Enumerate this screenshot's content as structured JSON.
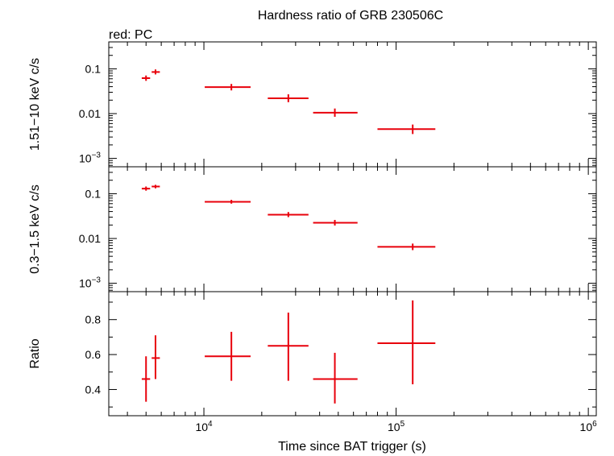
{
  "chart_data": {
    "type": "scatter",
    "title": "Hardness ratio of GRB 230506C",
    "subtitle": "red: PC",
    "xlabel": "Time since BAT trigger (s)",
    "x_scale": "log",
    "xlim": [
      3200,
      1100000
    ],
    "x_ticks": [
      {
        "value": 10000,
        "base": "10",
        "exp": "4"
      },
      {
        "value": 100000,
        "base": "10",
        "exp": "5"
      },
      {
        "value": 1000000,
        "base": "10",
        "exp": "6"
      }
    ],
    "color": "#e8000b",
    "panels": [
      {
        "id": "hard",
        "ylabel": "1.51−10 keV c/s",
        "y_scale": "log",
        "ylim": [
          0.00065,
          0.4
        ],
        "y_ticks": [
          {
            "value": 0.1,
            "label": "0.1"
          },
          {
            "value": 0.01,
            "label": "0.01"
          },
          {
            "value": 0.001,
            "base": "10",
            "exp": "−3"
          }
        ],
        "points": [
          {
            "x": 5000,
            "xlo": 4750,
            "xhi": 5250,
            "y": 0.062,
            "ylo": 0.054,
            "yhi": 0.071
          },
          {
            "x": 5600,
            "xlo": 5350,
            "xhi": 5900,
            "y": 0.085,
            "ylo": 0.075,
            "yhi": 0.097
          },
          {
            "x": 13900,
            "xlo": 10100,
            "xhi": 17500,
            "y": 0.039,
            "ylo": 0.033,
            "yhi": 0.046
          },
          {
            "x": 27500,
            "xlo": 21500,
            "xhi": 35000,
            "y": 0.022,
            "ylo": 0.018,
            "yhi": 0.027
          },
          {
            "x": 48000,
            "xlo": 37000,
            "xhi": 63000,
            "y": 0.0105,
            "ylo": 0.0085,
            "yhi": 0.013
          },
          {
            "x": 122000,
            "xlo": 80000,
            "xhi": 160000,
            "y": 0.0045,
            "ylo": 0.0035,
            "yhi": 0.0057
          }
        ]
      },
      {
        "id": "soft",
        "ylabel": "0.3−1.5 keV c/s",
        "y_scale": "log",
        "ylim": [
          0.00065,
          0.4
        ],
        "y_ticks": [
          {
            "value": 0.1,
            "label": "0.1"
          },
          {
            "value": 0.01,
            "label": "0.01"
          },
          {
            "value": 0.001,
            "base": "10",
            "exp": "−3"
          }
        ],
        "points": [
          {
            "x": 5000,
            "xlo": 4750,
            "xhi": 5250,
            "y": 0.13,
            "ylo": 0.117,
            "yhi": 0.145
          },
          {
            "x": 5600,
            "xlo": 5350,
            "xhi": 5900,
            "y": 0.145,
            "ylo": 0.132,
            "yhi": 0.158
          },
          {
            "x": 13900,
            "xlo": 10100,
            "xhi": 17500,
            "y": 0.066,
            "ylo": 0.06,
            "yhi": 0.073
          },
          {
            "x": 27500,
            "xlo": 21500,
            "xhi": 35000,
            "y": 0.034,
            "ylo": 0.03,
            "yhi": 0.039
          },
          {
            "x": 48000,
            "xlo": 37000,
            "xhi": 63000,
            "y": 0.0225,
            "ylo": 0.0195,
            "yhi": 0.026
          },
          {
            "x": 122000,
            "xlo": 80000,
            "xhi": 160000,
            "y": 0.0065,
            "ylo": 0.0055,
            "yhi": 0.0077
          }
        ]
      },
      {
        "id": "ratio",
        "ylabel": "Ratio",
        "y_scale": "linear",
        "ylim": [
          0.25,
          0.96
        ],
        "y_ticks": [
          {
            "value": 0.4,
            "label": "0.4"
          },
          {
            "value": 0.6,
            "label": "0.6"
          },
          {
            "value": 0.8,
            "label": "0.8"
          }
        ],
        "points": [
          {
            "x": 5000,
            "xlo": 4750,
            "xhi": 5250,
            "y": 0.46,
            "ylo": 0.33,
            "yhi": 0.59
          },
          {
            "x": 5600,
            "xlo": 5350,
            "xhi": 5900,
            "y": 0.58,
            "ylo": 0.46,
            "yhi": 0.71
          },
          {
            "x": 13900,
            "xlo": 10100,
            "xhi": 17500,
            "y": 0.59,
            "ylo": 0.45,
            "yhi": 0.73
          },
          {
            "x": 27500,
            "xlo": 21500,
            "xhi": 35000,
            "y": 0.65,
            "ylo": 0.45,
            "yhi": 0.84
          },
          {
            "x": 48000,
            "xlo": 37000,
            "xhi": 63000,
            "y": 0.46,
            "ylo": 0.32,
            "yhi": 0.61
          },
          {
            "x": 122000,
            "xlo": 80000,
            "xhi": 160000,
            "y": 0.665,
            "ylo": 0.43,
            "yhi": 0.91
          }
        ]
      }
    ]
  }
}
